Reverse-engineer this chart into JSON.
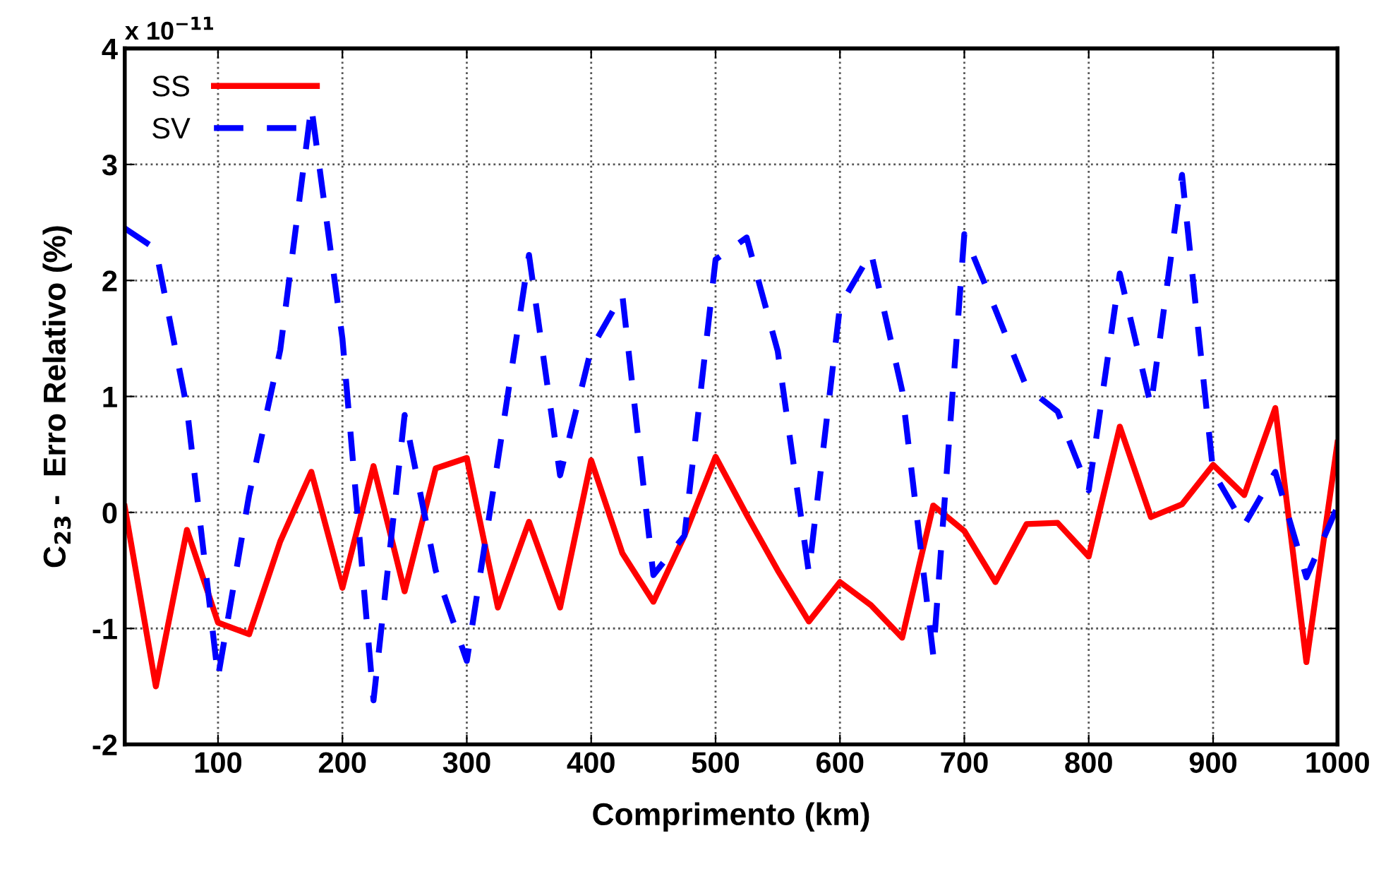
{
  "chart_data": {
    "type": "line",
    "xlabel": "Comprimento (km)",
    "ylabel": "C$_{23}$ -  Erro Relativo (%)",
    "annotations": [
      "x 10$^{−11}$"
    ],
    "x": [
      25,
      50,
      75,
      100,
      125,
      150,
      175,
      200,
      225,
      250,
      275,
      300,
      325,
      350,
      375,
      400,
      425,
      450,
      475,
      500,
      525,
      550,
      575,
      600,
      625,
      650,
      675,
      700,
      725,
      750,
      775,
      800,
      825,
      850,
      875,
      900,
      925,
      950,
      975,
      1000
    ],
    "series": [
      {
        "name": "SS",
        "color": "#ff0000",
        "line_style": "solid",
        "values": [
          0.05,
          -1.5,
          -0.15,
          -0.95,
          -1.05,
          -0.25,
          0.35,
          -0.65,
          0.4,
          -0.68,
          0.38,
          0.47,
          -0.82,
          -0.08,
          -0.82,
          0.45,
          -0.35,
          -0.77,
          -0.2,
          0.48,
          -0.02,
          -0.5,
          -0.94,
          -0.6,
          -0.8,
          -1.08,
          0.06,
          -0.16,
          -0.6,
          -0.1,
          -0.09,
          -0.38,
          0.74,
          -0.04,
          0.07,
          0.41,
          0.15,
          0.9,
          -1.29,
          0.6
        ]
      },
      {
        "name": "SV",
        "color": "#0000ff",
        "line_style": "dashed",
        "values": [
          2.45,
          2.27,
          0.9,
          -1.42,
          0.15,
          1.4,
          3.5,
          1.5,
          -1.62,
          0.84,
          -0.5,
          -1.28,
          0.45,
          2.22,
          0.32,
          1.41,
          1.88,
          -0.54,
          -0.2,
          2.18,
          2.37,
          1.39,
          -0.52,
          1.78,
          2.24,
          1.05,
          -1.23,
          2.4,
          1.75,
          1.08,
          0.87,
          0.19,
          2.06,
          0.92,
          2.91,
          0.35,
          -0.11,
          0.35,
          -0.56,
          0.05
        ]
      }
    ],
    "xlim": [
      25,
      1000
    ],
    "xticks": [
      100,
      200,
      300,
      400,
      500,
      600,
      700,
      800,
      900,
      1000
    ],
    "ylim": [
      -2,
      4
    ],
    "yticks": [
      -2,
      -1,
      0,
      1,
      2,
      3,
      4
    ],
    "grid": true,
    "legend": "top left",
    "marker": "none"
  }
}
